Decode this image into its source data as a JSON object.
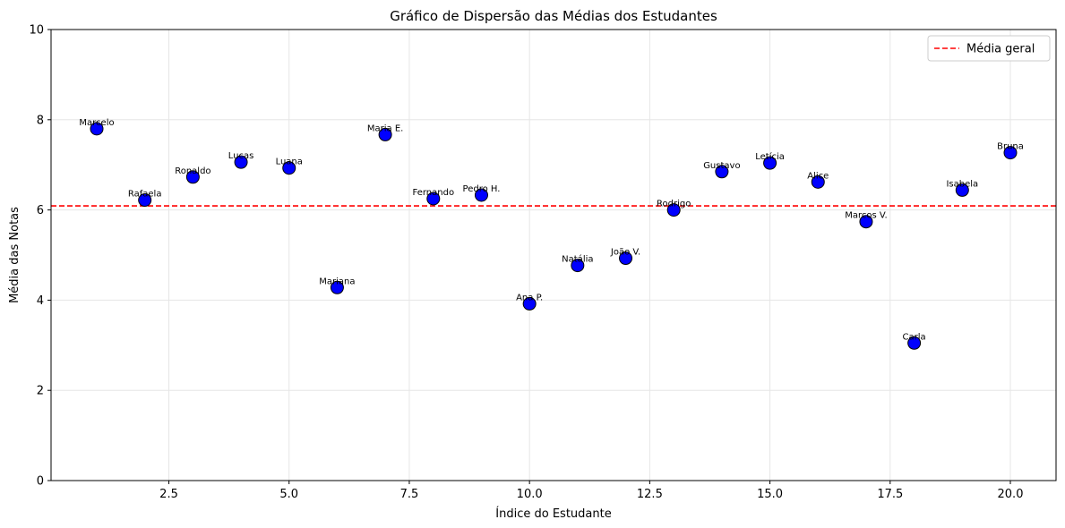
{
  "chart_data": {
    "type": "scatter",
    "title": "Gráfico de Dispersão das Médias dos Estudantes",
    "xlabel": "Índice do Estudante",
    "ylabel": "Média das Notas",
    "xlim": [
      0.05,
      20.95
    ],
    "ylim": [
      0,
      10
    ],
    "x_ticks": [
      2.5,
      5.0,
      7.5,
      10.0,
      12.5,
      15.0,
      17.5,
      20.0
    ],
    "x_tick_labels": [
      "2.5",
      "5.0",
      "7.5",
      "10.0",
      "12.5",
      "15.0",
      "17.5",
      "20.0"
    ],
    "y_ticks": [
      0,
      2,
      4,
      6,
      8,
      10
    ],
    "y_tick_labels": [
      "0",
      "2",
      "4",
      "6",
      "8",
      "10"
    ],
    "grid": true,
    "legend_position": "top-right",
    "marker_color": "#0000ff",
    "marker_edge": "#000000",
    "reference_line": {
      "label": "Média geral",
      "y": 6.09,
      "color": "#ff0000",
      "style": "dashed"
    },
    "points": [
      {
        "x": 1,
        "y": 7.8,
        "label": "Marcelo"
      },
      {
        "x": 2,
        "y": 6.22,
        "label": "Rafaela"
      },
      {
        "x": 3,
        "y": 6.73,
        "label": "Ronaldo"
      },
      {
        "x": 4,
        "y": 7.06,
        "label": "Lucas"
      },
      {
        "x": 5,
        "y": 6.93,
        "label": "Luana"
      },
      {
        "x": 6,
        "y": 4.28,
        "label": "Mariana"
      },
      {
        "x": 7,
        "y": 7.67,
        "label": "Maria E."
      },
      {
        "x": 8,
        "y": 6.25,
        "label": "Fernando"
      },
      {
        "x": 9,
        "y": 6.33,
        "label": "Pedro H."
      },
      {
        "x": 10,
        "y": 3.92,
        "label": "Ana P."
      },
      {
        "x": 11,
        "y": 4.77,
        "label": "Natália"
      },
      {
        "x": 12,
        "y": 4.93,
        "label": "João V."
      },
      {
        "x": 13,
        "y": 6.0,
        "label": "Rodrigo"
      },
      {
        "x": 14,
        "y": 6.85,
        "label": "Gustavo"
      },
      {
        "x": 15,
        "y": 7.04,
        "label": "Letícia"
      },
      {
        "x": 16,
        "y": 6.62,
        "label": "Alice"
      },
      {
        "x": 17,
        "y": 5.74,
        "label": "Marcos V."
      },
      {
        "x": 18,
        "y": 3.05,
        "label": "Carla"
      },
      {
        "x": 19,
        "y": 6.44,
        "label": "Isabela"
      },
      {
        "x": 20,
        "y": 7.27,
        "label": "Bruna"
      }
    ]
  }
}
